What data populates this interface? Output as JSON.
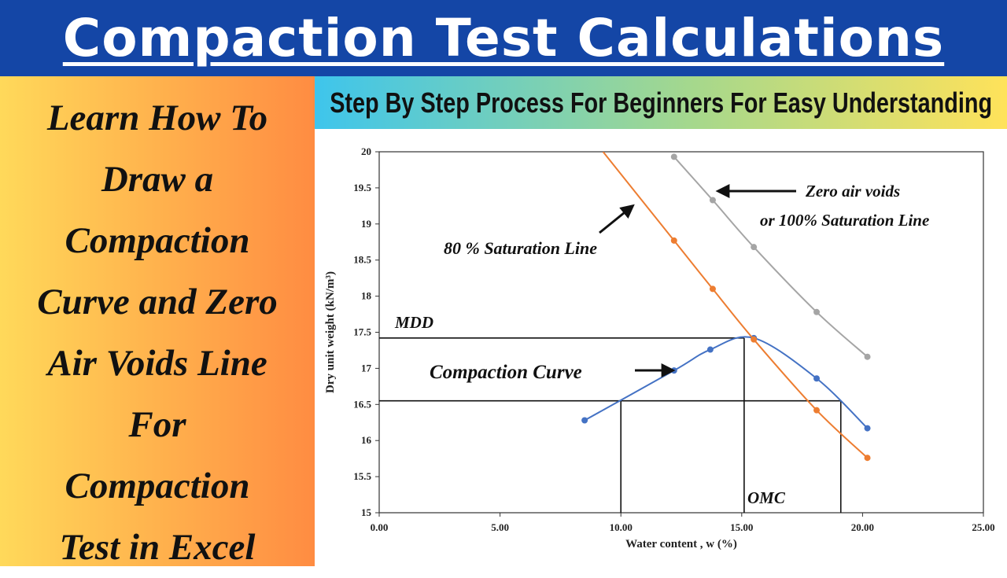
{
  "banner": {
    "title": "Compaction Test Calculations"
  },
  "side_panel": {
    "lines": [
      "Learn How To",
      "Draw a",
      "Compaction",
      "Curve and Zero",
      "Air Voids Line",
      "For",
      "Compaction",
      "Test in Excel"
    ]
  },
  "subtitle": {
    "text": "Step By Step Process For Beginners For Easy Understanding"
  },
  "colors": {
    "banner": "#1446a6",
    "compaction": "#4472c4",
    "saturation80": "#ed7d31",
    "zero_air_voids": "#a5a5a5"
  },
  "chart_data": {
    "type": "line",
    "title": "",
    "xlabel": "Water content , w (%)",
    "ylabel": "Dry unit weight (kN/m³)",
    "xlim": [
      0,
      25
    ],
    "ylim": [
      15,
      20
    ],
    "x_ticks": [
      "0.00",
      "5.00",
      "10.00",
      "15.00",
      "20.00",
      "25.00"
    ],
    "y_ticks": [
      "15",
      "15.5",
      "16",
      "16.5",
      "17",
      "17.5",
      "18",
      "18.5",
      "19",
      "19.5",
      "20"
    ],
    "grid": false,
    "legend": "none",
    "series": [
      {
        "key": "compaction",
        "color": "#4472c4",
        "points": [
          [
            8.5,
            16.28
          ],
          [
            12.2,
            16.97
          ],
          [
            13.7,
            17.26
          ],
          [
            15.5,
            17.42
          ],
          [
            18.1,
            16.86
          ],
          [
            20.2,
            16.17
          ]
        ]
      },
      {
        "key": "saturation80",
        "color": "#ed7d31",
        "points": [
          [
            12.2,
            18.77
          ],
          [
            13.8,
            18.1
          ],
          [
            15.5,
            17.4
          ],
          [
            18.1,
            16.42
          ],
          [
            20.2,
            15.76
          ]
        ]
      },
      {
        "key": "zero_air_voids",
        "color": "#a5a5a5",
        "points": [
          [
            12.2,
            19.93
          ],
          [
            13.8,
            19.33
          ],
          [
            15.5,
            18.68
          ],
          [
            18.1,
            17.78
          ],
          [
            20.2,
            17.16
          ]
        ]
      }
    ],
    "reference_lines": {
      "mdd": {
        "w": 15.1,
        "gamma": 17.42
      },
      "left_half": {
        "w": 10.0,
        "gamma": 16.55
      },
      "right_half": {
        "w": 19.1,
        "gamma": 16.55
      }
    },
    "annotations": {
      "zav_line1": "Zero air voids",
      "zav_line2": "or 100% Saturation Line",
      "sat80": "80 % Saturation Line",
      "compaction": "Compaction Curve",
      "mdd": "MDD",
      "omc": "OMC"
    }
  }
}
